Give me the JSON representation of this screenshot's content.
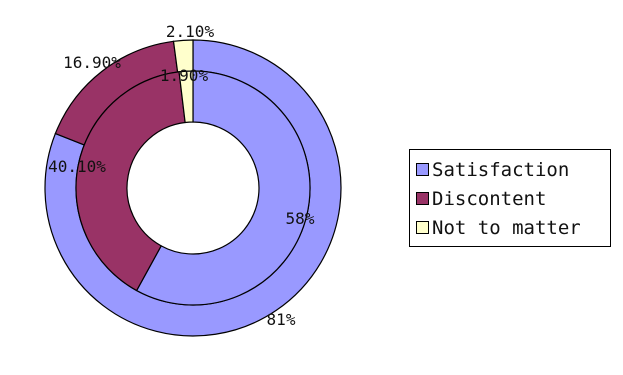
{
  "chart_data": {
    "type": "pie",
    "title": "",
    "categories": [
      "Satisfaction",
      "Discontent",
      "Not to matter"
    ],
    "colors": {
      "Satisfaction": "#9999ff",
      "Discontent": "#993366",
      "Not to matter": "#ffffcc"
    },
    "series": [
      {
        "ring": "outer",
        "values": [
          81,
          16.9,
          2.1
        ],
        "labels": [
          "81%",
          "16.90%",
          "2.10%"
        ]
      },
      {
        "ring": "inner",
        "values": [
          58,
          40.1,
          1.9
        ],
        "labels": [
          "58%",
          "40.10%",
          "1.90%"
        ]
      }
    ],
    "legend_position": "right"
  },
  "legend": {
    "items": [
      {
        "label": "Satisfaction",
        "color": "#9999ff"
      },
      {
        "label": "Discontent",
        "color": "#993366"
      },
      {
        "label": "Not to matter",
        "color": "#ffffcc"
      }
    ]
  }
}
